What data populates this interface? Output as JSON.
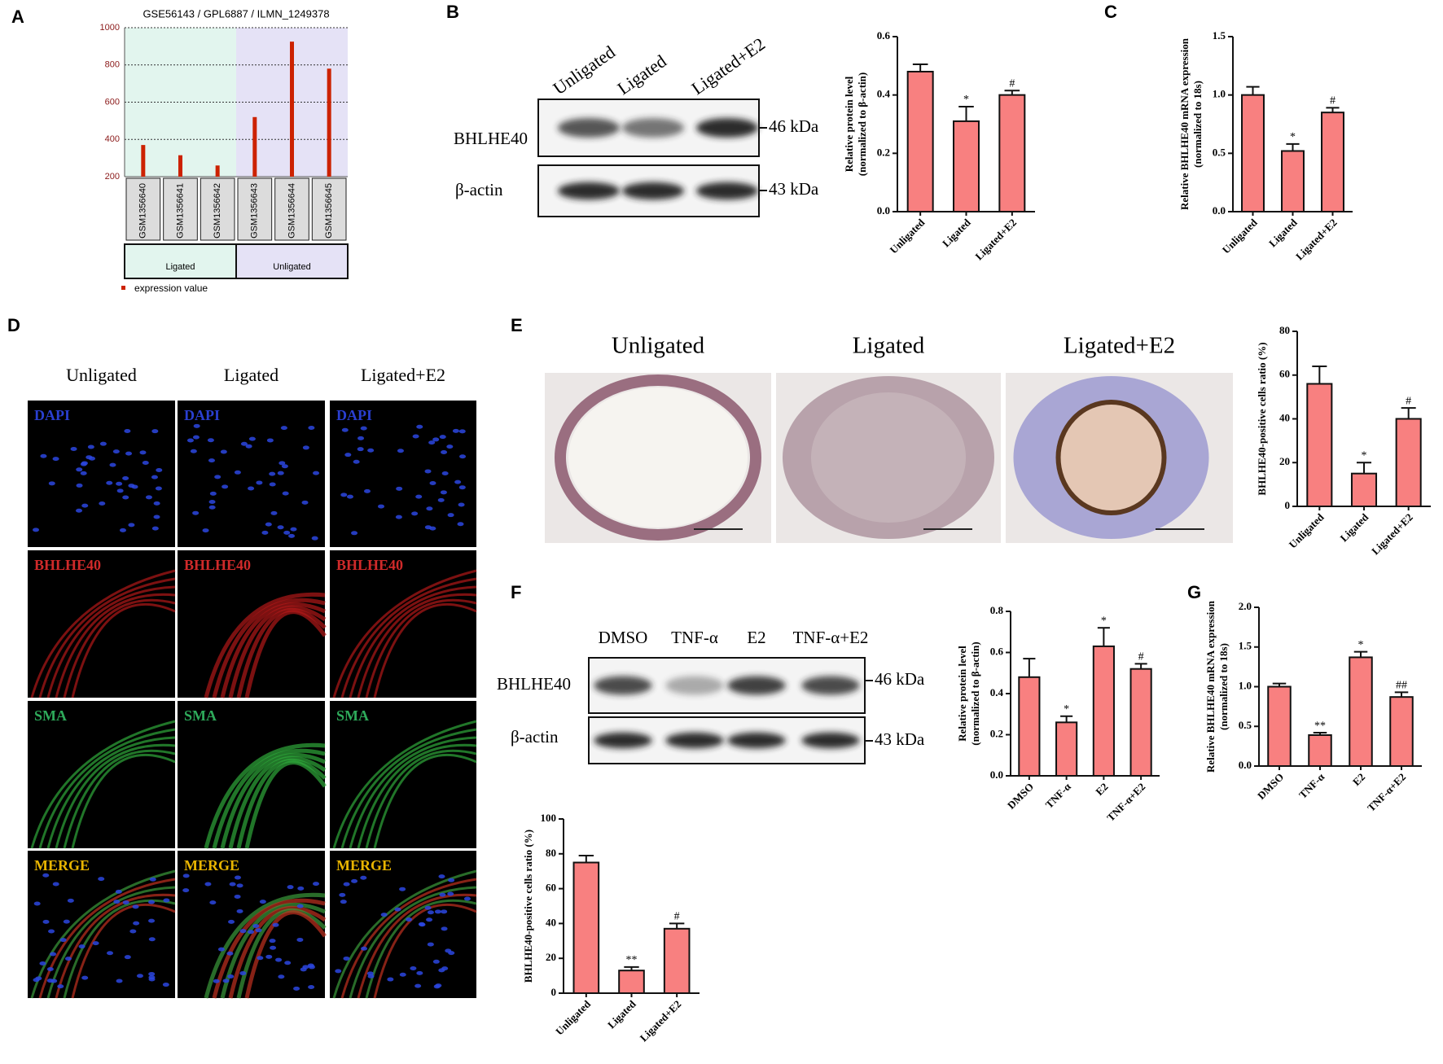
{
  "panel_labels": [
    "A",
    "B",
    "C",
    "D",
    "E",
    "F",
    "G"
  ],
  "blot_b": {
    "lanes": [
      "Unligated",
      "Ligated",
      "Ligated+E2"
    ],
    "proteins": [
      "BHLHE40",
      "β-actin"
    ],
    "sizes": [
      "46 kDa",
      "43 kDa"
    ]
  },
  "blot_f": {
    "lanes": [
      "DMSO",
      "TNF-α",
      "E2",
      "TNF-α+E2"
    ],
    "proteins": [
      "BHLHE40",
      "β-actin"
    ],
    "sizes": [
      "46 kDa",
      "43 kDa"
    ]
  },
  "immunofluorescence": {
    "columns": [
      "Unligated",
      "Ligated",
      "Ligated+E2"
    ],
    "stains": [
      "DAPI",
      "BHLHE40",
      "SMA",
      "MERGE"
    ]
  },
  "ihc": {
    "columns": [
      "Unligated",
      "Ligated",
      "Ligated+E2"
    ]
  },
  "chart_data": [
    {
      "type": "bar",
      "title": "GSE56143 / GPL6887 / ILMN_1249378",
      "categories": [
        "GSM1356640",
        "GSM1356641",
        "GSM1356642",
        "GSM1356643",
        "GSM1356644",
        "GSM1356645"
      ],
      "values": [
        370,
        315,
        260,
        520,
        925,
        780
      ],
      "color": "#cc2200",
      "groups": [
        "Ligated",
        "Unligated"
      ],
      "group_colors": [
        "#e2f5ee",
        "#e5e2f6"
      ],
      "legend": "expression value",
      "ylim": [
        200,
        1000
      ],
      "yticks": [
        200,
        400,
        600,
        800,
        1000
      ],
      "grid": true
    },
    {
      "type": "bar",
      "ylabel": [
        "Relative  protein level",
        "(normalized to β-actin)"
      ],
      "categories": [
        "Unligated",
        "Ligated",
        "Ligated+E2"
      ],
      "values": [
        0.48,
        0.31,
        0.4
      ],
      "errors": [
        0.025,
        0.05,
        0.015
      ],
      "significance": [
        null,
        "*",
        "#"
      ],
      "color": "#f88080",
      "ylim": [
        0,
        0.6
      ],
      "yticks": [
        {
          "value": 0,
          "label": "0.0"
        },
        0.2,
        0.4,
        0.6
      ]
    },
    {
      "type": "bar",
      "ylabel": [
        "Relative BHLHE40 mRNA expression",
        "(normalized to 18s)"
      ],
      "categories": [
        "Unligated",
        "Ligated",
        "Ligated+E2"
      ],
      "values": [
        1.0,
        0.52,
        0.85
      ],
      "errors": [
        0.07,
        0.06,
        0.04
      ],
      "significance": [
        null,
        "*",
        "#"
      ],
      "color": "#f88080",
      "ylim": [
        0,
        1.5
      ],
      "yticks": [
        {
          "value": 0,
          "label": "0.0"
        },
        0.5,
        {
          "value": 1,
          "label": "1.0"
        },
        1.5
      ]
    },
    {
      "type": "bar",
      "ylabel": [
        "BHLHE40-positive cells ratio (%)"
      ],
      "categories": [
        "Unligated",
        "Ligated",
        "Ligated+E2"
      ],
      "values": [
        56,
        15,
        40
      ],
      "errors": [
        8,
        5,
        5
      ],
      "significance": [
        null,
        "*",
        "#"
      ],
      "color": "#f88080",
      "ylim": [
        0,
        80
      ],
      "yticks": [
        0,
        20,
        40,
        60,
        80
      ]
    },
    {
      "type": "bar",
      "ylabel": [
        "Relative  protein level",
        "(normalized to β-actin)"
      ],
      "categories": [
        "DMSO",
        "TNF-α",
        "E2",
        "TNF-α+E2"
      ],
      "values": [
        0.48,
        0.26,
        0.63,
        0.52
      ],
      "errors": [
        0.09,
        0.03,
        0.09,
        0.025
      ],
      "significance": [
        null,
        "*",
        "*",
        "#"
      ],
      "color": "#f88080",
      "ylim": [
        0,
        0.8
      ],
      "yticks": [
        {
          "value": 0,
          "label": "0.0"
        },
        0.2,
        0.4,
        0.6,
        0.8
      ]
    },
    {
      "type": "bar",
      "ylabel": [
        "Relative BHLHE40 mRNA expression",
        "(normalized to 18s)"
      ],
      "categories": [
        "DMSO",
        "TNF-α",
        "E2",
        "TNF-α+E2"
      ],
      "values": [
        1.0,
        0.39,
        1.37,
        0.87
      ],
      "errors": [
        0.04,
        0.03,
        0.07,
        0.06
      ],
      "significance": [
        null,
        "**",
        "*",
        "##"
      ],
      "color": "#f88080",
      "ylim": [
        0,
        2
      ],
      "yticks": [
        {
          "value": 0,
          "label": "0.0"
        },
        0.5,
        {
          "value": 1,
          "label": "1.0"
        },
        1.5,
        {
          "value": 2,
          "label": "2.0"
        }
      ]
    },
    {
      "type": "bar",
      "ylabel": [
        "BHLHE40-positive cells ratio (%)"
      ],
      "categories": [
        "Unligated",
        "Ligated",
        "Ligated+E2"
      ],
      "values": [
        75,
        13,
        37
      ],
      "errors": [
        4,
        2,
        3
      ],
      "significance": [
        null,
        "**",
        "#"
      ],
      "color": "#f88080",
      "ylim": [
        0,
        100
      ],
      "yticks": [
        0,
        20,
        40,
        60,
        80,
        100
      ]
    }
  ]
}
